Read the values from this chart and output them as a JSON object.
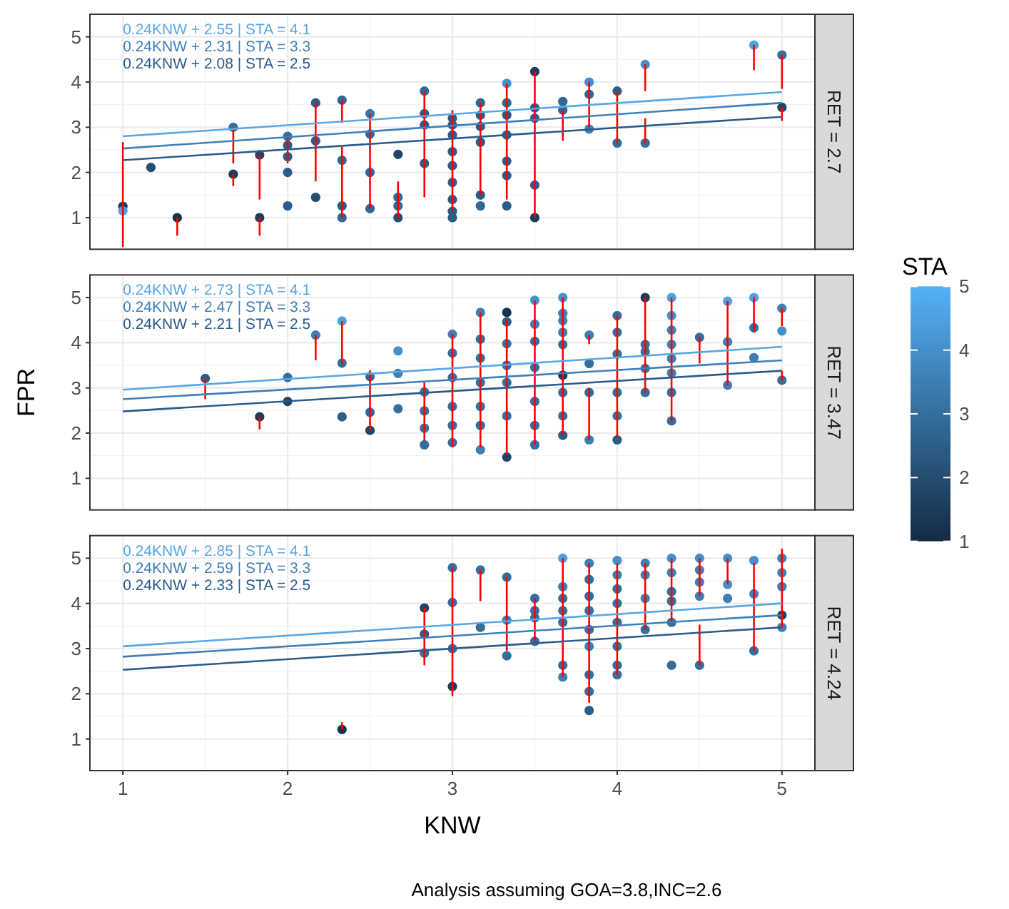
{
  "chart_data": [
    {
      "type": "scatter",
      "title": "RET = 2.7",
      "xlim": [
        0.8,
        5.2
      ],
      "xticks": [
        1,
        2,
        3,
        4,
        5
      ],
      "ylim": [
        0.3,
        5.5
      ],
      "yticks": [
        1,
        2,
        3,
        4,
        5
      ],
      "grid": true,
      "tick_labels": "y",
      "series": [
        {
          "type": "scatter",
          "x": [
            1,
            1,
            1.17,
            1.33,
            1.67,
            1.67,
            1.83,
            1.83,
            2,
            2,
            2,
            2,
            2,
            2.17,
            2.17,
            2.17,
            2.33,
            2.33,
            2.33,
            2.33,
            2.5,
            2.5,
            2.5,
            2.5,
            2.67,
            2.67,
            2.67,
            2.67,
            2.83,
            2.83,
            2.83,
            2.83,
            3,
            3,
            3,
            3,
            3,
            3,
            3,
            3,
            3,
            3.17,
            3.17,
            3.17,
            3.17,
            3.17,
            3.17,
            3.33,
            3.33,
            3.33,
            3.33,
            3.33,
            3.33,
            3.33,
            3.5,
            3.5,
            3.5,
            3.5,
            3.5,
            3.67,
            3.67,
            3.83,
            3.83,
            3.83,
            4,
            4,
            4.17,
            4.17,
            4.83,
            5,
            5
          ],
          "values": [
            1.25,
            1.15,
            2.11,
            1,
            3,
            1.96,
            2.39,
            1,
            2.8,
            2.6,
            2.35,
            2,
            1.26,
            3.54,
            2.7,
            1.45,
            3.6,
            2.27,
            1.26,
            1,
            3.3,
            2.85,
            2,
            1.2,
            2.4,
            1.45,
            1.26,
            1,
            3.8,
            3.3,
            3.05,
            2.2,
            3.2,
            3.05,
            2.83,
            2.46,
            2.15,
            1.78,
            1.4,
            1.14,
            1,
            3.54,
            3.27,
            3.02,
            2.67,
            1.5,
            1.26,
            3.97,
            3.54,
            3.27,
            2.83,
            2.25,
            1.93,
            1.26,
            4.23,
            3.43,
            3.2,
            1.72,
            1,
            3.57,
            3.38,
            4,
            3.73,
            2.96,
            3.8,
            2.65,
            4.39,
            2.65,
            4.82,
            4.6,
            3.44
          ],
          "colors": [
            "#1b3c5a",
            "#4ea0e1",
            "#244d70",
            "#16324c",
            "#356e9d",
            "#1b3c5a",
            "#204667",
            "#1b3c5a",
            "#356e9d",
            "#2c5d87",
            "#2c5d87",
            "#2c5d87",
            "#2c5d87",
            "#2c5d87",
            "#2c5d87",
            "#244d70",
            "#316794",
            "#316794",
            "#2c5d87",
            "#316794",
            "#3a78ab",
            "#316794",
            "#316794",
            "#316794",
            "#204667",
            "#316794",
            "#316794",
            "#244d70",
            "#316794",
            "#2c5d87",
            "#2c5d87",
            "#2c5d87",
            "#2c5d87",
            "#2c5d87",
            "#2c5d87",
            "#2c5d87",
            "#2c5d87",
            "#2c5d87",
            "#2c5d87",
            "#2c5d87",
            "#2c5d87",
            "#316794",
            "#2c5d87",
            "#2c5d87",
            "#2c5d87",
            "#2c5d87",
            "#316794",
            "#4590ca",
            "#316794",
            "#2c5d87",
            "#2c5d87",
            "#2c5d87",
            "#2c5d87",
            "#2c5d87",
            "#1b3c5a",
            "#2c5d87",
            "#2c5d87",
            "#2c5d87",
            "#1b3c5a",
            "#316794",
            "#316794",
            "#4590ca",
            "#316794",
            "#3d7fb4",
            "#2c5d87",
            "#356e9d",
            "#4590ca",
            "#356e9d",
            "#4ea0e1",
            "#356e9d",
            "#204667"
          ],
          "errors": [
            [
              0.35,
              2.67
            ],
            null,
            null,
            [
              0.6,
              1
            ],
            [
              2.2,
              3
            ],
            [
              1.7,
              1.96
            ],
            [
              1.4,
              2.39
            ],
            [
              0.6,
              1
            ],
            [
              2.2,
              2.8
            ],
            null,
            null,
            null,
            null,
            [
              1.8,
              3.54
            ],
            null,
            null,
            [
              3.1,
              3.6
            ],
            [
              1,
              2.57
            ],
            null,
            null,
            [
              1.2,
              3.3
            ],
            null,
            null,
            null,
            null,
            [
              1,
              1.8
            ],
            null,
            null,
            [
              1.45,
              3.8
            ],
            null,
            null,
            null,
            [
              1.14,
              3.38
            ],
            null,
            null,
            null,
            null,
            null,
            null,
            null,
            null,
            [
              1.5,
              3.54
            ],
            null,
            null,
            null,
            null,
            null,
            [
              1.4,
              3.97
            ],
            null,
            null,
            null,
            null,
            null,
            null,
            [
              1,
              4.23
            ],
            null,
            null,
            null,
            null,
            null,
            [
              2.7,
              3.38
            ],
            [
              3,
              4
            ],
            null,
            null,
            [
              2.65,
              3.8
            ],
            null,
            [
              3.8,
              4.39
            ],
            [
              2.65,
              3.2
            ],
            [
              4.26,
              4.82
            ],
            [
              3.85,
              4.6
            ],
            [
              3.14,
              3.44
            ]
          ]
        },
        {
          "type": "line",
          "x": [
            1,
            5
          ],
          "values": [
            2.8,
            3.78
          ],
          "color": "#5aa6e4"
        },
        {
          "type": "line",
          "x": [
            1,
            5
          ],
          "values": [
            2.53,
            3.54
          ],
          "color": "#3f7fb8"
        },
        {
          "type": "line",
          "x": [
            1,
            5
          ],
          "values": [
            2.27,
            3.23
          ],
          "color": "#2b5b8a"
        }
      ],
      "annotations": [
        "0.24KNW + 2.55 | STA = 4.1",
        "0.24KNW + 2.31 | STA = 3.3",
        "0.24KNW + 2.08 | STA = 2.5"
      ]
    },
    {
      "type": "scatter",
      "title": "RET = 3.47",
      "ylabel": "FPR",
      "xlim": [
        0.8,
        5.2
      ],
      "xticks": [
        1,
        2,
        3,
        4,
        5
      ],
      "ylim": [
        0.3,
        5.5
      ],
      "yticks": [
        1,
        2,
        3,
        4,
        5
      ],
      "grid": true,
      "tick_labels": "y",
      "clabel": "STA",
      "clim": [
        1,
        5
      ],
      "cticks": [
        1,
        2,
        3,
        4,
        5
      ],
      "series": [
        {
          "type": "scatter",
          "x": [
            1.5,
            1.83,
            2,
            2,
            2.17,
            2.33,
            2.33,
            2.33,
            2.5,
            2.5,
            2.5,
            2.67,
            2.67,
            2.67,
            2.83,
            2.83,
            2.83,
            2.83,
            3,
            3,
            3,
            3,
            3,
            3,
            3.17,
            3.17,
            3.17,
            3.17,
            3.17,
            3.17,
            3.17,
            3.33,
            3.33,
            3.33,
            3.33,
            3.33,
            3.33,
            3.33,
            3.5,
            3.5,
            3.5,
            3.5,
            3.5,
            3.5,
            3.5,
            3.67,
            3.67,
            3.67,
            3.67,
            3.67,
            3.67,
            3.67,
            3.67,
            3.67,
            3.83,
            3.83,
            3.83,
            3.83,
            4,
            4,
            4,
            4,
            4,
            4,
            4.17,
            4.17,
            4.17,
            4.17,
            4.17,
            4.33,
            4.33,
            4.33,
            4.33,
            4.33,
            4.33,
            4.33,
            4.33,
            4.5,
            4.67,
            4.67,
            4.67,
            4.83,
            4.83,
            4.83,
            5,
            5,
            5
          ],
          "values": [
            3.21,
            2.36,
            3.23,
            2.7,
            4.17,
            4.48,
            3.55,
            2.36,
            3.25,
            2.46,
            2.06,
            3.82,
            3.32,
            2.54,
            2.91,
            2.49,
            2.11,
            1.74,
            4.19,
            3.77,
            3.23,
            2.59,
            2.17,
            1.79,
            4.67,
            4.08,
            3.66,
            3.12,
            2.59,
            2.17,
            1.63,
            4.67,
            4.46,
            3.98,
            3.5,
            3.12,
            2.38,
            1.47,
            4.94,
            4.41,
            4.03,
            3.45,
            2.7,
            2.17,
            1.74,
            5,
            4.65,
            4.49,
            4.23,
            3.96,
            3.28,
            2.9,
            2.38,
            1.95,
            4.17,
            3.54,
            2.9,
            1.85,
            4.6,
            4.23,
            3.75,
            2.9,
            2.38,
            1.85,
            5,
            3.96,
            3.8,
            3.43,
            2.9,
            5,
            4.6,
            4.28,
            3.96,
            3.65,
            3.33,
            2.9,
            2.27,
            4.12,
            4.92,
            4.02,
            3.06,
            5,
            4.33,
            3.67,
            4.76,
            4.26,
            3.17
          ],
          "colors": [
            "#2c5d87",
            "#1b3c5a",
            "#356e9d",
            "#204667",
            "#3d7fb4",
            "#4ea0e1",
            "#356e9d",
            "#2c5d87",
            "#316794",
            "#316794",
            "#204667",
            "#4590ca",
            "#3d7fb4",
            "#356e9d",
            "#356e9d",
            "#356e9d",
            "#356e9d",
            "#356e9d",
            "#3d7fb4",
            "#356e9d",
            "#356e9d",
            "#356e9d",
            "#356e9d",
            "#356e9d",
            "#3d7fb4",
            "#356e9d",
            "#356e9d",
            "#356e9d",
            "#356e9d",
            "#356e9d",
            "#3d7fb4",
            "#16324c",
            "#2c5d87",
            "#356e9d",
            "#356e9d",
            "#356e9d",
            "#356e9d",
            "#204667",
            "#4590ca",
            "#3d7fb4",
            "#356e9d",
            "#356e9d",
            "#356e9d",
            "#356e9d",
            "#356e9d",
            "#4590ca",
            "#3d7fb4",
            "#3d7fb4",
            "#3d7fb4",
            "#356e9d",
            "#1b3c5a",
            "#356e9d",
            "#356e9d",
            "#2c5d87",
            "#3d7fb4",
            "#356e9d",
            "#356e9d",
            "#3d7fb4",
            "#356e9d",
            "#356e9d",
            "#356e9d",
            "#356e9d",
            "#356e9d",
            "#2c5d87",
            "#1b3c5a",
            "#356e9d",
            "#356e9d",
            "#356e9d",
            "#356e9d",
            "#4ea0e1",
            "#4590ca",
            "#3d7fb4",
            "#3d7fb4",
            "#3d7fb4",
            "#3d7fb4",
            "#356e9d",
            "#356e9d",
            "#356e9d",
            "#4ea0e1",
            "#3d7fb4",
            "#3d7fb4",
            "#4ea0e1",
            "#356e9d",
            "#3d7fb4",
            "#3d7fb4",
            "#4590ca",
            "#356e9d"
          ],
          "errors": [
            [
              2.75,
              3.21
            ],
            [
              2.08,
              2.36
            ],
            null,
            null,
            [
              3.61,
              4.17
            ],
            [
              3.52,
              4.48
            ],
            null,
            null,
            [
              2.06,
              3.39
            ],
            null,
            null,
            null,
            null,
            null,
            [
              1.84,
              3.12
            ],
            null,
            null,
            null,
            [
              1.69,
              4.19
            ],
            null,
            null,
            null,
            null,
            null,
            [
              1.68,
              4.67
            ],
            null,
            null,
            null,
            null,
            null,
            null,
            [
              1.52,
              4.51
            ],
            null,
            null,
            null,
            null,
            null,
            null,
            [
              1.74,
              4.94
            ],
            null,
            null,
            null,
            null,
            null,
            null,
            [
              1.95,
              5
            ],
            null,
            null,
            null,
            null,
            null,
            null,
            null,
            null,
            [
              3.97,
              4.17
            ],
            null,
            null,
            [
              1.85,
              3
            ],
            [
              1.9,
              4.6
            ],
            null,
            null,
            null,
            null,
            null,
            [
              2.9,
              5
            ],
            null,
            null,
            null,
            null,
            [
              2.27,
              5
            ],
            null,
            null,
            null,
            null,
            null,
            null,
            null,
            [
              3.54,
              4.12
            ],
            [
              3.06,
              4.92
            ],
            null,
            null,
            [
              4.23,
              5
            ],
            null,
            null,
            [
              4.37,
              4.76
            ],
            null,
            [
              3.17,
              3.38
            ]
          ]
        },
        {
          "type": "line",
          "x": [
            1,
            5
          ],
          "values": [
            2.96,
            3.91
          ],
          "color": "#5aa6e4"
        },
        {
          "type": "line",
          "x": [
            1,
            5
          ],
          "values": [
            2.75,
            3.61
          ],
          "color": "#3f7fb8"
        },
        {
          "type": "line",
          "x": [
            1,
            5
          ],
          "values": [
            2.48,
            3.38
          ],
          "color": "#2b5b8a"
        }
      ],
      "annotations": [
        "0.24KNW + 2.73 | STA = 4.1",
        "0.24KNW + 2.47 | STA = 3.3",
        "0.24KNW + 2.21 | STA = 2.5"
      ]
    },
    {
      "type": "scatter",
      "title": "RET = 4.24",
      "xlabel": "KNW",
      "xlim": [
        0.8,
        5.2
      ],
      "xticks": [
        1,
        2,
        3,
        4,
        5
      ],
      "ylim": [
        0.3,
        5.5
      ],
      "yticks": [
        1,
        2,
        3,
        4,
        5
      ],
      "grid": true,
      "series": [
        {
          "type": "scatter",
          "x": [
            2.33,
            2.83,
            2.83,
            2.83,
            3,
            3,
            3,
            3,
            3.17,
            3.17,
            3.33,
            3.33,
            3.33,
            3.5,
            3.5,
            3.5,
            3.5,
            3.67,
            3.67,
            3.67,
            3.67,
            3.67,
            3.67,
            3.67,
            3.83,
            3.83,
            3.83,
            3.83,
            3.83,
            3.83,
            3.83,
            3.83,
            3.83,
            4,
            4,
            4,
            4,
            4,
            4,
            4,
            4,
            4.17,
            4.17,
            4.17,
            4.17,
            4.33,
            4.33,
            4.33,
            4.33,
            4.33,
            4.33,
            4.5,
            4.5,
            4.5,
            4.5,
            4.5,
            4.67,
            4.67,
            4.67,
            4.83,
            4.83,
            4.83,
            5,
            5,
            5,
            5,
            5
          ],
          "values": [
            1.21,
            3.9,
            3.32,
            2.9,
            4.79,
            4.02,
            3,
            2.16,
            4.74,
            3.47,
            4.58,
            3.63,
            2.84,
            4.11,
            3.84,
            3.68,
            3.16,
            5,
            4.37,
            4.11,
            3.84,
            3.58,
            2.63,
            2.37,
            4.89,
            4.53,
            4.16,
            3.84,
            3.42,
            3.05,
            2.42,
            2.05,
            1.63,
            4.95,
            4.63,
            4.32,
            4,
            3.58,
            3.05,
            2.63,
            2.42,
            4.89,
            4.63,
            4.11,
            3.42,
            5,
            4.68,
            4.26,
            4.05,
            3.58,
            2.63,
            5,
            4.74,
            4.47,
            4.16,
            2.63,
            5,
            4.42,
            4.11,
            4.95,
            4.21,
            2.95,
            5,
            4.68,
            4.37,
            3.74,
            3.47
          ],
          "colors": [
            "#16324c",
            "#204667",
            "#2c5d87",
            "#356e9d",
            "#356e9d",
            "#356e9d",
            "#356e9d",
            "#1b3c5a",
            "#356e9d",
            "#356e9d",
            "#356e9d",
            "#3d7fb4",
            "#356e9d",
            "#356e9d",
            "#356e9d",
            "#356e9d",
            "#356e9d",
            "#4ea0e1",
            "#3d7fb4",
            "#356e9d",
            "#356e9d",
            "#356e9d",
            "#356e9d",
            "#3d7fb4",
            "#3d7fb4",
            "#356e9d",
            "#356e9d",
            "#356e9d",
            "#356e9d",
            "#3d7fb4",
            "#356e9d",
            "#356e9d",
            "#2c5d87",
            "#4590ca",
            "#3d7fb4",
            "#356e9d",
            "#356e9d",
            "#356e9d",
            "#356e9d",
            "#356e9d",
            "#356e9d",
            "#3d7fb4",
            "#3d7fb4",
            "#3d7fb4",
            "#356e9d",
            "#4590ca",
            "#3d7fb4",
            "#356e9d",
            "#356e9d",
            "#356e9d",
            "#356e9d",
            "#4590ca",
            "#3d7fb4",
            "#3d7fb4",
            "#3d7fb4",
            "#356e9d",
            "#4590ca",
            "#4590ca",
            "#3d7fb4",
            "#4590ca",
            "#3d7fb4",
            "#356e9d",
            "#3d7fb4",
            "#3d7fb4",
            "#3d7fb4",
            "#204667",
            "#3d7fb4"
          ],
          "errors": [
            [
              1.21,
              1.37
            ],
            [
              2.63,
              3.9
            ],
            null,
            null,
            [
              1.95,
              4.79
            ],
            null,
            null,
            null,
            [
              4.05,
              4.74
            ],
            null,
            [
              2.95,
              4.58
            ],
            null,
            null,
            [
              3.16,
              4.11
            ],
            null,
            null,
            null,
            [
              2.37,
              5
            ],
            null,
            null,
            null,
            null,
            null,
            null,
            [
              1.8,
              4.89
            ],
            null,
            null,
            null,
            null,
            null,
            null,
            null,
            null,
            [
              2.42,
              4.89
            ],
            null,
            null,
            null,
            null,
            null,
            null,
            null,
            [
              3.42,
              4.89
            ],
            null,
            null,
            null,
            [
              3.58,
              5
            ],
            null,
            null,
            null,
            null,
            null,
            [
              4.16,
              5
            ],
            null,
            null,
            null,
            [
              2.63,
              3.53
            ],
            [
              4.42,
              5
            ],
            null,
            null,
            [
              2.95,
              4.89
            ],
            null,
            null,
            [
              3.47,
              5.21
            ],
            null,
            null,
            null,
            null
          ]
        },
        {
          "type": "line",
          "x": [
            1,
            5
          ],
          "values": [
            3.05,
            4
          ],
          "color": "#5aa6e4"
        },
        {
          "type": "line",
          "x": [
            1,
            5
          ],
          "values": [
            2.82,
            3.74
          ],
          "color": "#3f7fb8"
        },
        {
          "type": "line",
          "x": [
            1,
            5
          ],
          "values": [
            2.53,
            3.47
          ],
          "color": "#2b5b8a"
        }
      ],
      "annotations": [
        "0.24KNW + 2.85 | STA = 4.1",
        "0.24KNW + 2.59 | STA = 3.3",
        "0.24KNW + 2.33 | STA = 2.5",
        "Analysis assuming GOA=3.8,INC=2.6"
      ]
    }
  ]
}
